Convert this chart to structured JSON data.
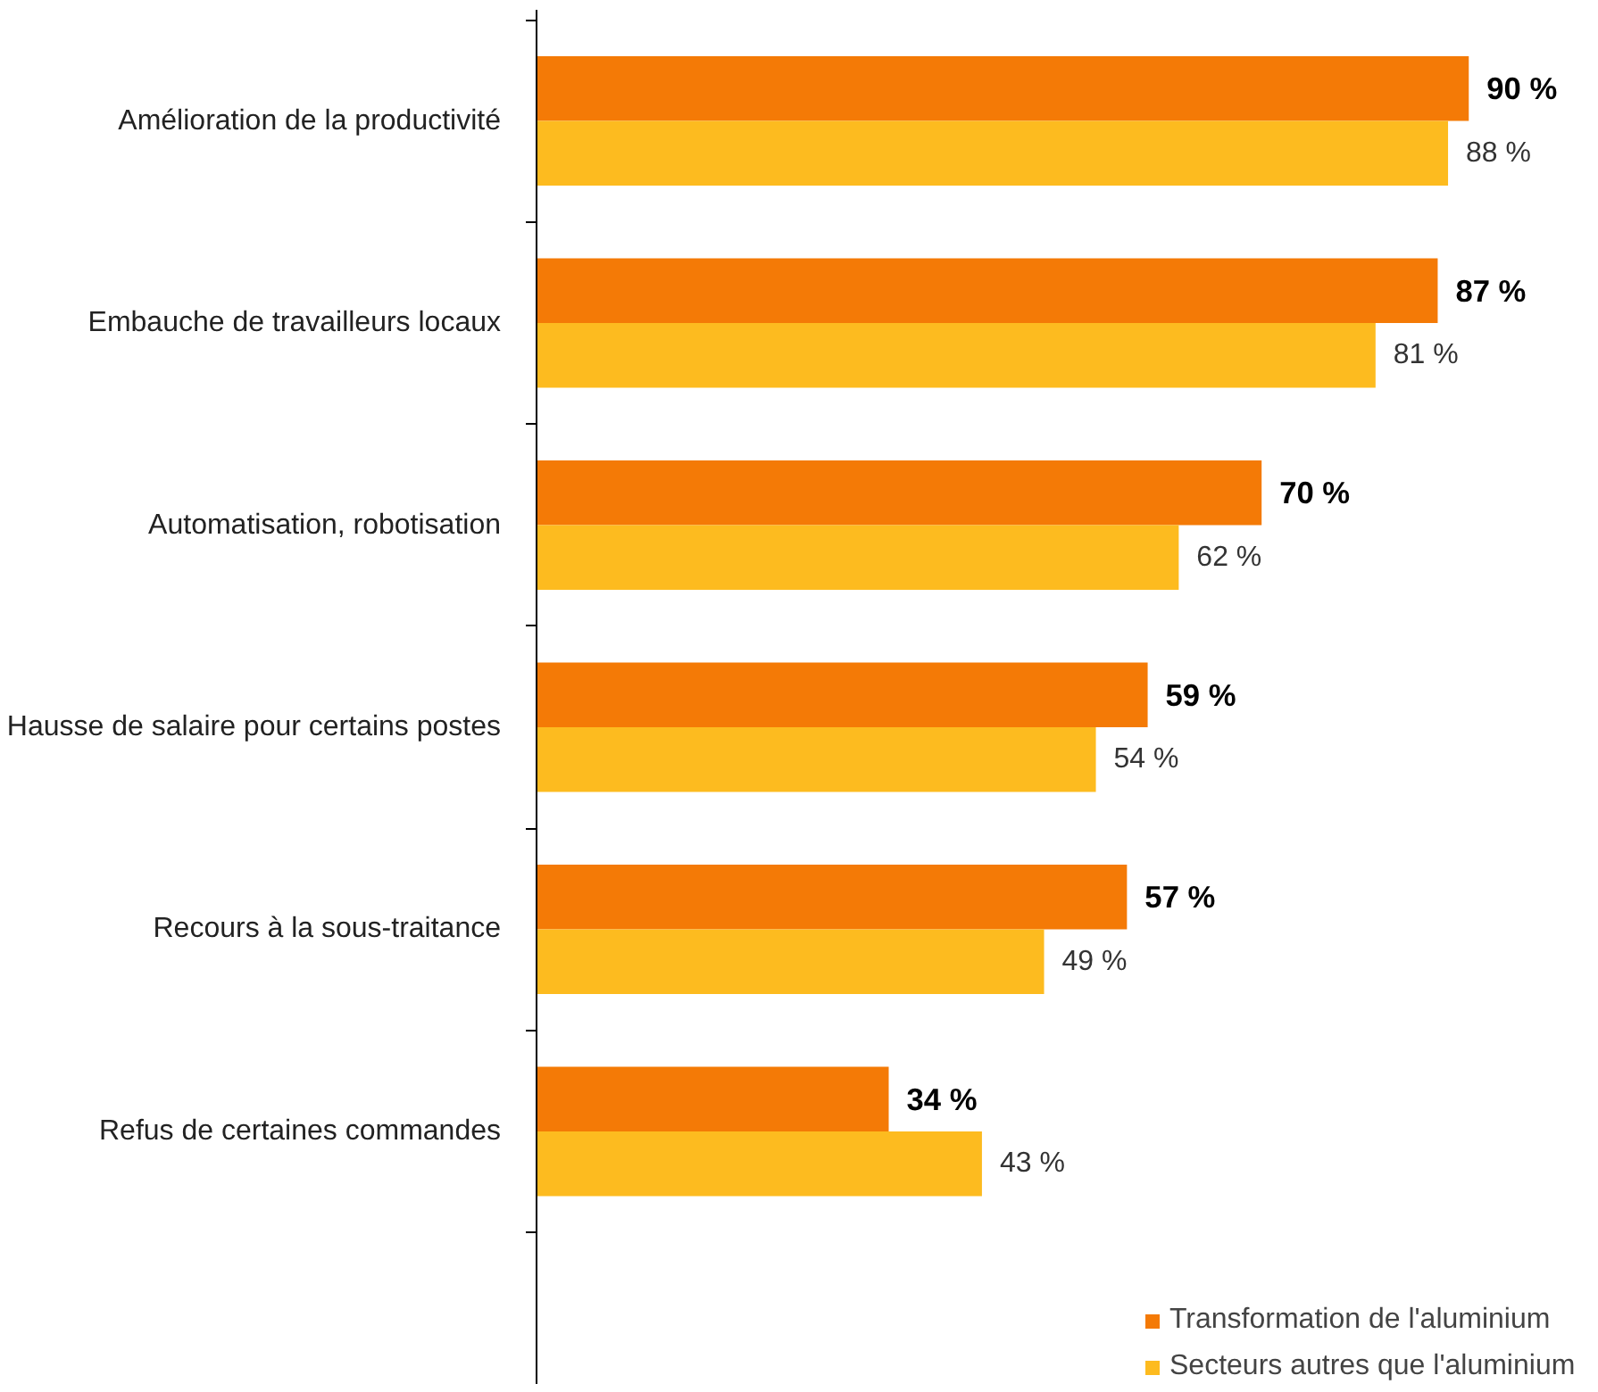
{
  "chart_data": {
    "type": "bar",
    "orientation": "horizontal",
    "categories": [
      "Amélioration de la productivité",
      "Embauche de travailleurs locaux",
      "Automatisation, robotisation",
      "Hausse de salaire pour certains postes",
      "Recours à la sous-traitance",
      "Refus de certaines commandes"
    ],
    "series": [
      {
        "name": "Transformation de l'aluminium",
        "color": "#f47a06",
        "values": [
          90,
          87,
          70,
          59,
          57,
          34
        ],
        "value_labels": [
          "90 %",
          "87 %",
          "70 %",
          "59 %",
          "57 %",
          "34 %"
        ]
      },
      {
        "name": "Secteurs autres que l'aluminium",
        "color": "#fdbb1f",
        "values": [
          88,
          81,
          62,
          54,
          49,
          43
        ],
        "value_labels": [
          "88 %",
          "81 %",
          "62 %",
          "54 %",
          "49 %",
          "43 %"
        ]
      }
    ],
    "legend": "bottom",
    "grid": false
  }
}
